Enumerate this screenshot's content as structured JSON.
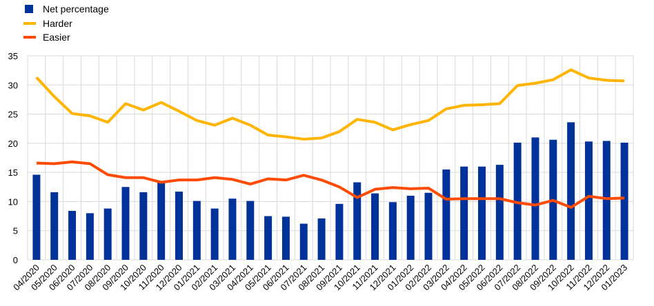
{
  "chart_data": {
    "type": "bar",
    "categories": [
      "04/2020",
      "05/2020",
      "06/2020",
      "07/2020",
      "08/2020",
      "09/2020",
      "10/2020",
      "11/2020",
      "12/2020",
      "01/2021",
      "02/2021",
      "03/2021",
      "04/2021",
      "05/2021",
      "06/2021",
      "07/2021",
      "08/2021",
      "09/2021",
      "10/2021",
      "11/2021",
      "12/2021",
      "01/2022",
      "02/2022",
      "03/2022",
      "04/2022",
      "05/2022",
      "06/2022",
      "07/2022",
      "08/2022",
      "09/2022",
      "10/2022",
      "11/2022",
      "12/2022",
      "01/2023"
    ],
    "series": [
      {
        "name": "Net percentage",
        "type": "bar",
        "color": "#003299",
        "values": [
          14.6,
          11.6,
          8.4,
          8.0,
          8.8,
          12.5,
          11.6,
          13.4,
          11.7,
          10.1,
          8.8,
          10.5,
          10.1,
          7.5,
          7.4,
          6.2,
          7.1,
          9.6,
          13.3,
          11.4,
          9.9,
          11.0,
          11.5,
          15.5,
          16.0,
          16.0,
          16.3,
          20.1,
          21.0,
          20.6,
          23.6,
          20.3,
          20.4,
          20.1
        ]
      },
      {
        "name": "Harder",
        "type": "line",
        "color": "#ffb400",
        "values": [
          31.3,
          28.0,
          25.1,
          24.7,
          23.6,
          26.8,
          25.7,
          27.0,
          25.5,
          23.9,
          23.1,
          24.3,
          23.1,
          21.4,
          21.1,
          20.7,
          20.9,
          22.0,
          24.1,
          23.6,
          22.3,
          23.2,
          23.9,
          25.9,
          26.5,
          26.6,
          26.8,
          29.9,
          30.3,
          30.9,
          32.6,
          31.2,
          30.8,
          30.7
        ]
      },
      {
        "name": "Easier",
        "type": "line",
        "color": "#ff4b00",
        "values": [
          16.6,
          16.5,
          16.8,
          16.5,
          14.6,
          14.1,
          14.1,
          13.3,
          13.7,
          13.7,
          14.1,
          13.8,
          13.0,
          13.9,
          13.7,
          14.5,
          13.7,
          12.5,
          10.7,
          12.1,
          12.4,
          12.2,
          12.3,
          10.4,
          10.5,
          10.5,
          10.5,
          9.8,
          9.4,
          10.2,
          9.0,
          10.9,
          10.5,
          10.6
        ]
      }
    ],
    "yticks": [
      0,
      5,
      10,
      15,
      20,
      25,
      30,
      35
    ],
    "ylim": [
      0,
      35
    ],
    "grid": true,
    "legend_position": "top-left"
  }
}
